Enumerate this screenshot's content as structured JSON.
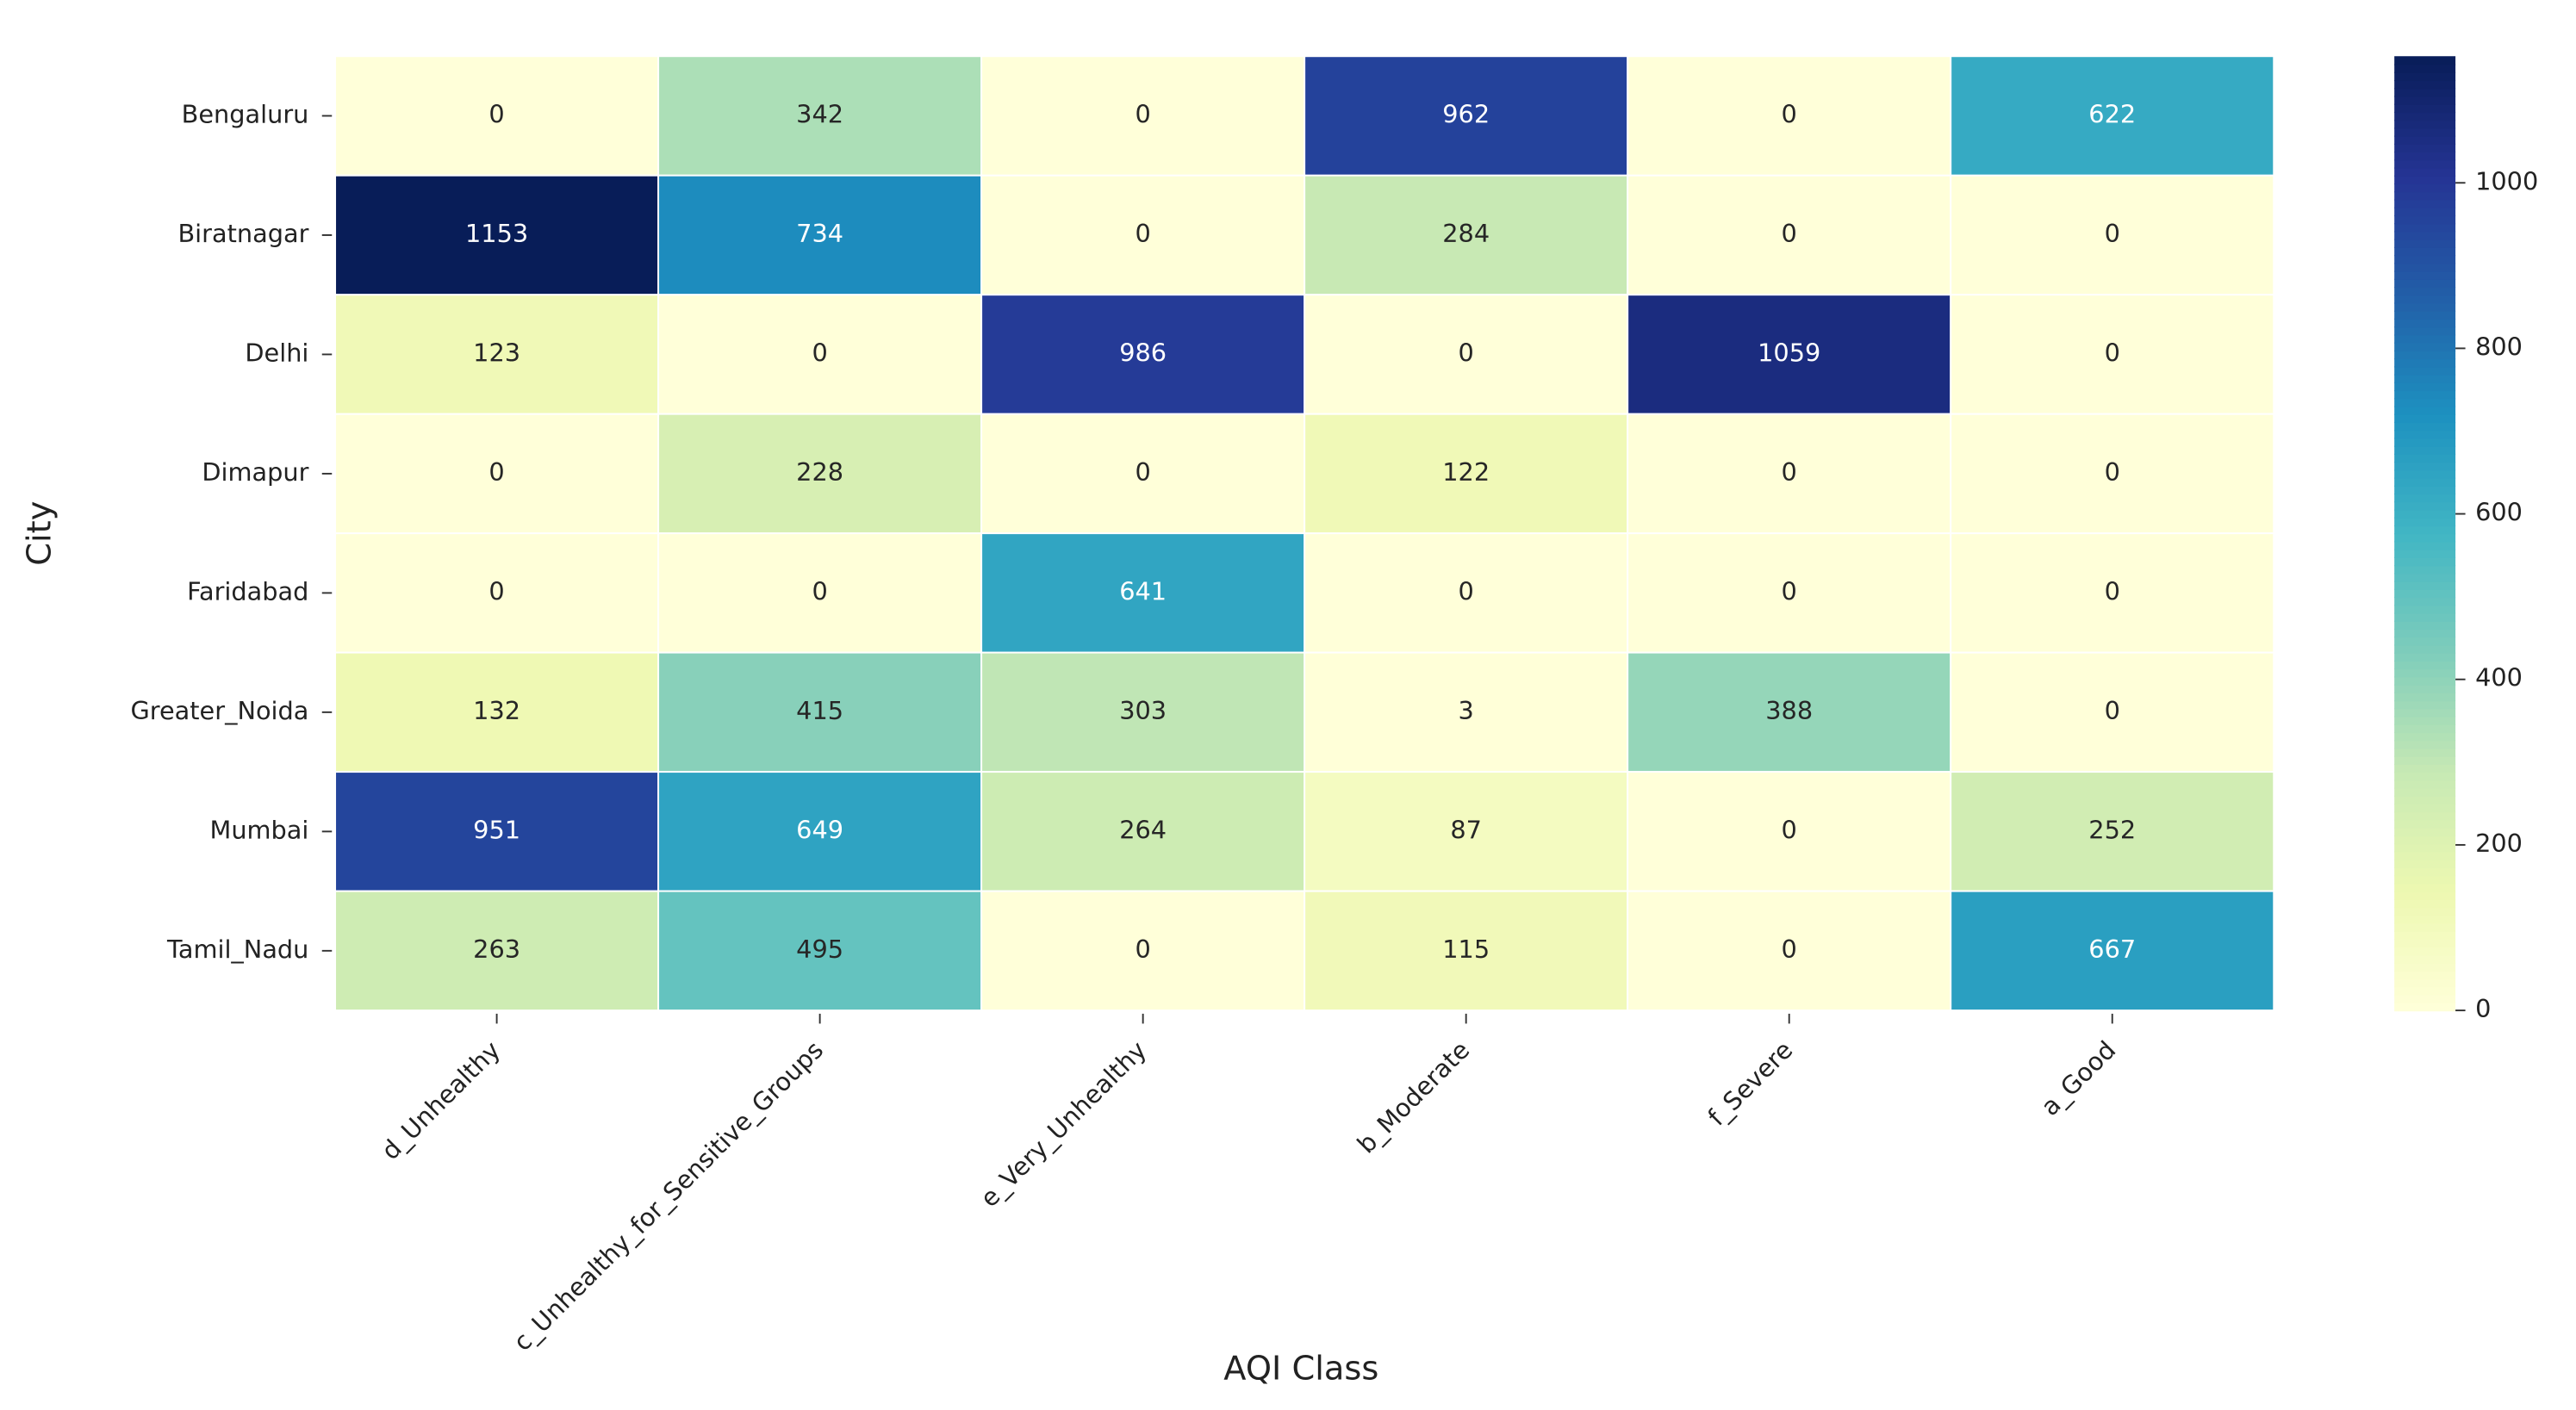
{
  "chart_data": {
    "type": "heatmap",
    "x_label": "AQI Class",
    "y_label": "City",
    "x_categories": [
      "d_Unhealthy",
      "c_Unhealthy_for_Sensitive_Groups",
      "e_Very_Unhealthy",
      "b_Moderate",
      "f_Severe",
      "a_Good"
    ],
    "y_categories": [
      "Bengaluru",
      "Biratnagar",
      "Delhi",
      "Dimapur",
      "Faridabad",
      "Greater_Noida",
      "Mumbai",
      "Tamil_Nadu"
    ],
    "values": [
      [
        0,
        342,
        0,
        962,
        0,
        622
      ],
      [
        1153,
        734,
        0,
        284,
        0,
        0
      ],
      [
        123,
        0,
        986,
        0,
        1059,
        0
      ],
      [
        0,
        228,
        0,
        122,
        0,
        0
      ],
      [
        0,
        0,
        641,
        0,
        0,
        0
      ],
      [
        132,
        415,
        303,
        3,
        388,
        0
      ],
      [
        951,
        649,
        264,
        87,
        0,
        252
      ],
      [
        263,
        495,
        0,
        115,
        0,
        667
      ]
    ],
    "colormap": "YlGnBu",
    "clim": [
      0,
      1153
    ],
    "colorbar_ticks": [
      0,
      200,
      400,
      600,
      800,
      1000
    ]
  }
}
